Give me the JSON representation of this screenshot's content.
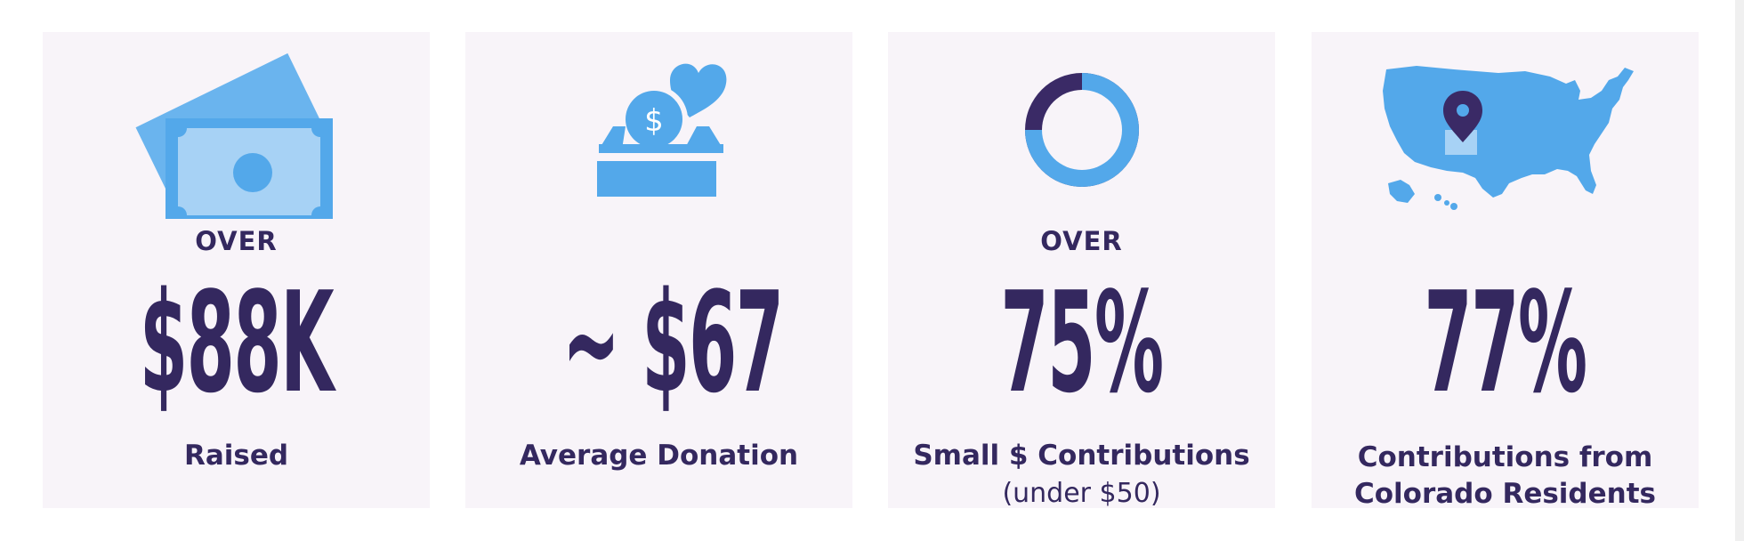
{
  "colors": {
    "background": "#ffffff",
    "card_background": "#f8f4f9",
    "text_dark": "#34285f",
    "accent_blue": "#53a8ea",
    "accent_light_blue": "#a7d2f5",
    "accent_purple": "#3a2a66"
  },
  "cards": [
    {
      "icon": "money-icon",
      "prefix": "OVER",
      "value": "$88K",
      "label": "Raised"
    },
    {
      "icon": "donation-box-icon",
      "value": "~ $67",
      "label": "Average Donation"
    },
    {
      "icon": "donut-chart-icon",
      "prefix": "OVER",
      "value": "75%",
      "label": "Small $ Contributions",
      "sublabel": "(under $50)",
      "donut_fraction": 0.75
    },
    {
      "icon": "us-map-pin-icon",
      "value": "77%",
      "label_line1": "Contributions from",
      "label_line2": "Colorado Residents"
    }
  ]
}
